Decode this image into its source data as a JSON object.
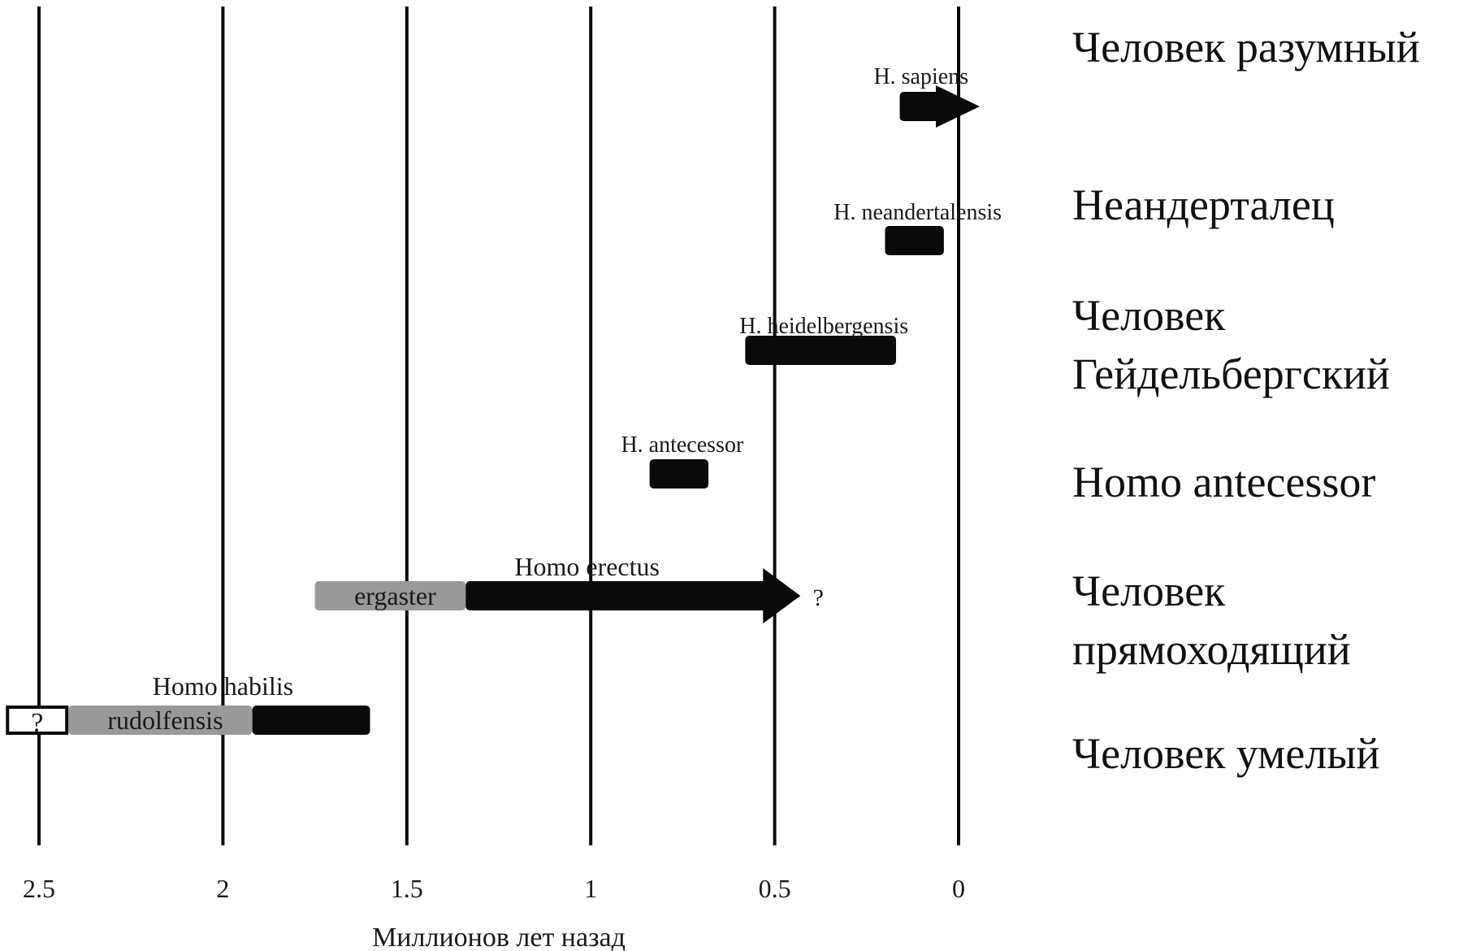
{
  "chart_data": {
    "type": "timeline",
    "xlabel": "Миллионов лет назад",
    "xlim": [
      2.5,
      0
    ],
    "ticks": [
      {
        "value": 2.5,
        "label": "2.5"
      },
      {
        "value": 2,
        "label": "2"
      },
      {
        "value": 1.5,
        "label": "1.5"
      },
      {
        "value": 1,
        "label": "1"
      },
      {
        "value": 0.5,
        "label": "0.5"
      },
      {
        "value": 0,
        "label": "0"
      }
    ],
    "grid": "vertical lines at each tick",
    "colors": {
      "main_bar": "#0a0a0a",
      "secondary_bar": "#999999",
      "gridline": "#0a0a0a"
    },
    "rows": [
      {
        "id": "sapiens",
        "species_label": "H. sapiens",
        "common_name_lines": [
          "Человек разумный"
        ],
        "segments": [
          {
            "start": 0.16,
            "end": 0.0,
            "color": "main_bar",
            "arrow": true
          }
        ]
      },
      {
        "id": "neanderthal",
        "species_label": "H. neandertalensis",
        "common_name_lines": [
          "Неандерталец"
        ],
        "segments": [
          {
            "start": 0.2,
            "end": 0.04,
            "color": "main_bar"
          }
        ]
      },
      {
        "id": "heidelberg",
        "species_label": "H. heidelbergensis",
        "common_name_lines": [
          "Человек",
          "Гейдельбергский"
        ],
        "segments": [
          {
            "start": 0.58,
            "end": 0.17,
            "color": "main_bar"
          }
        ]
      },
      {
        "id": "antecessor",
        "species_label": "H. antecessor",
        "common_name_lines": [
          "Homo antecessor"
        ],
        "segments": [
          {
            "start": 0.84,
            "end": 0.68,
            "color": "main_bar"
          }
        ]
      },
      {
        "id": "erectus",
        "species_label": "Homo erectus",
        "common_name_lines": [
          "Человек",
          "прямоходящий"
        ],
        "segments": [
          {
            "start": 1.75,
            "end": 1.34,
            "color": "secondary_bar",
            "label": "ergaster"
          },
          {
            "start": 1.34,
            "end": 0.43,
            "color": "main_bar",
            "arrow": true
          }
        ],
        "end_mark": "?"
      },
      {
        "id": "habilis",
        "species_label": "Homo habilis",
        "common_name_lines": [
          "Человек умелый"
        ],
        "segments": [
          {
            "start": 2.59,
            "end": 2.42,
            "color": "outline",
            "label": "?"
          },
          {
            "start": 2.42,
            "end": 1.92,
            "color": "secondary_bar",
            "label": "rudolfensis"
          },
          {
            "start": 1.92,
            "end": 1.6,
            "color": "main_bar"
          }
        ]
      }
    ]
  }
}
